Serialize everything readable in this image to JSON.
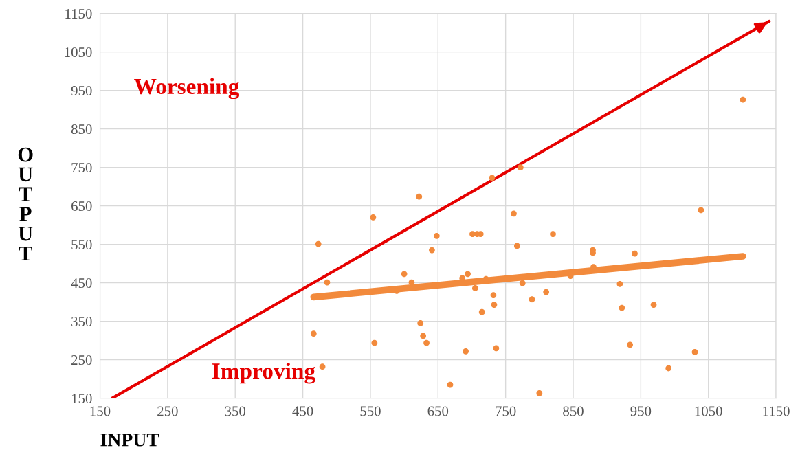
{
  "chart_data": {
    "type": "scatter",
    "xlabel": "INPUT",
    "ylabel": "OUTPUT",
    "xlim": [
      150,
      1150
    ],
    "ylim": [
      150,
      1150
    ],
    "xticks": [
      150,
      250,
      350,
      450,
      550,
      650,
      750,
      850,
      950,
      1050,
      1150
    ],
    "yticks": [
      150,
      250,
      350,
      450,
      550,
      650,
      750,
      850,
      950,
      1050,
      1150
    ],
    "grid": true,
    "series": [
      {
        "marker": "circle",
        "color": "#f28a3c",
        "x": [
          622,
          554,
          473,
          762,
          767,
          648,
          641,
          701,
          708,
          713,
          486,
          600,
          611,
          589,
          686,
          694,
          705,
          721,
          775,
          732,
          733,
          715,
          789,
          466,
          556,
          624,
          628,
          633,
          691,
          736,
          479,
          668,
          800,
          1101,
          1039,
          820,
          879,
          879,
          941,
          880,
          846,
          919,
          810,
          922,
          969,
          934,
          1030,
          991,
          730,
          772
        ],
        "values": [
          674,
          620,
          551,
          630,
          546,
          572,
          535,
          577,
          577,
          577,
          451,
          473,
          451,
          429,
          462,
          473,
          436,
          460,
          449,
          418,
          393,
          374,
          407,
          318,
          294,
          345,
          312,
          294,
          272,
          280,
          232,
          185,
          163,
          926,
          639,
          577,
          535,
          528,
          526,
          491,
          468,
          447,
          426,
          385,
          393,
          289,
          270,
          228,
          723,
          750
        ]
      },
      {
        "type": "line",
        "color": "#f28a3c",
        "x": [
          466,
          1101
        ],
        "values": [
          413,
          519
        ]
      },
      {
        "type": "line",
        "color": "#e60000",
        "x": [
          168,
          1140
        ],
        "values": [
          150,
          1130
        ]
      }
    ],
    "annotations": [
      "Worsening",
      "Improving"
    ]
  }
}
